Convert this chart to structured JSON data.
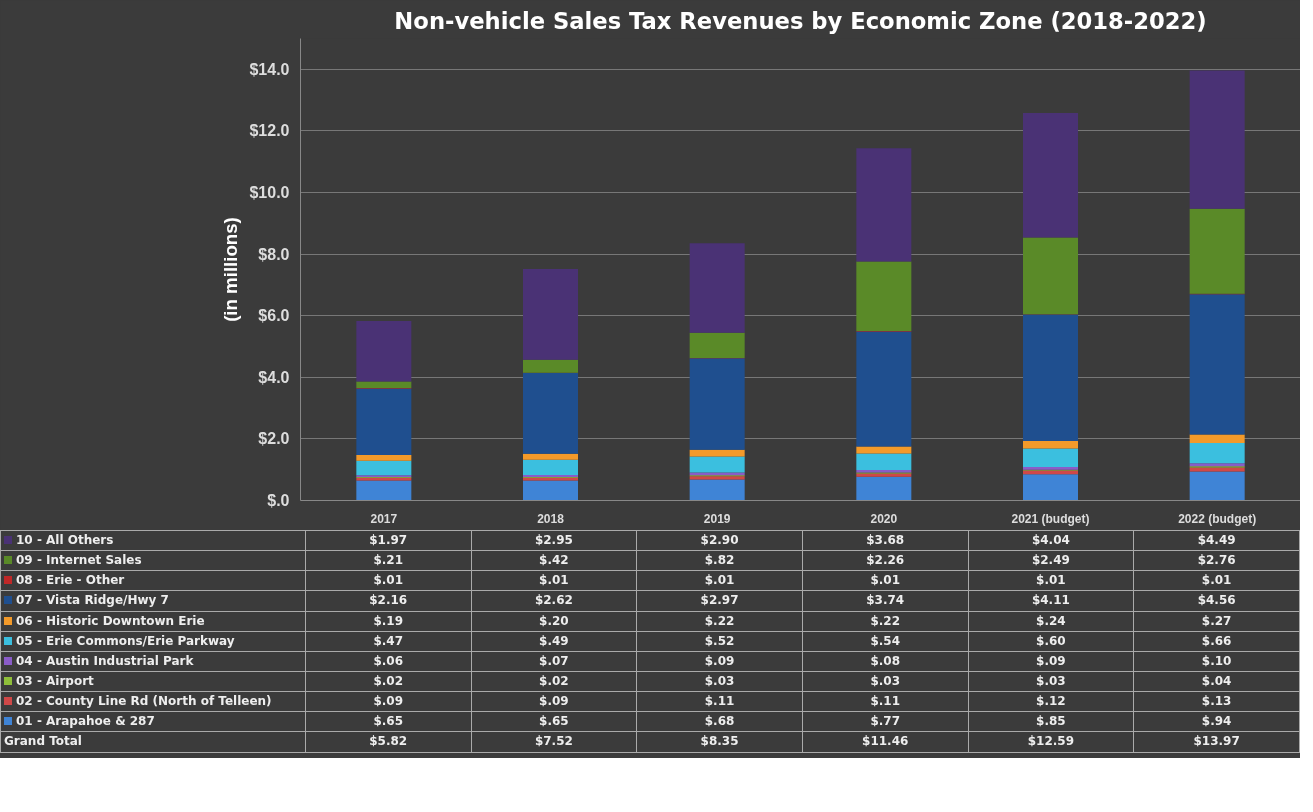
{
  "chart_data": {
    "type": "bar",
    "stacked": true,
    "title": "Non-vehicle Sales Tax Revenues by Economic Zone (2018-2022)",
    "ylabel": "(in millions)",
    "categories": [
      "2017",
      "2018",
      "2019",
      "2020",
      "2021 (budget)",
      "2022 (budget)"
    ],
    "ylim": [
      0,
      15
    ],
    "yticks": [
      {
        "value": 0,
        "label": "$.0"
      },
      {
        "value": 2,
        "label": "$2.0"
      },
      {
        "value": 4,
        "label": "$4.0"
      },
      {
        "value": 6,
        "label": "$6.0"
      },
      {
        "value": 8,
        "label": "$8.0"
      },
      {
        "value": 10,
        "label": "$10.0"
      },
      {
        "value": 12,
        "label": "$12.0"
      },
      {
        "value": 14,
        "label": "$14.0"
      }
    ],
    "grid": "y",
    "legend": "bottom left",
    "series": [
      {
        "name": "01 - Arapahoe & 287",
        "color": "#3f84d6",
        "values": [
          0.65,
          0.65,
          0.68,
          0.77,
          0.85,
          0.94
        ],
        "value_labels": [
          "$.65",
          "$.65",
          "$.68",
          "$.77",
          "$.85",
          "$.94"
        ]
      },
      {
        "name": "02 - County Line Rd (North of Telleen)",
        "color": "#d04848",
        "values": [
          0.09,
          0.09,
          0.11,
          0.11,
          0.12,
          0.13
        ],
        "value_labels": [
          "$.09",
          "$.09",
          "$.11",
          "$.11",
          "$.12",
          "$.13"
        ]
      },
      {
        "name": "03 - Airport",
        "color": "#8fbf3a",
        "values": [
          0.02,
          0.02,
          0.03,
          0.03,
          0.03,
          0.04
        ],
        "value_labels": [
          "$.02",
          "$.02",
          "$.03",
          "$.03",
          "$.03",
          "$.04"
        ]
      },
      {
        "name": "04 - Austin Industrial Park",
        "color": "#8a5cc8",
        "values": [
          0.06,
          0.07,
          0.09,
          0.08,
          0.09,
          0.1
        ],
        "value_labels": [
          "$.06",
          "$.07",
          "$.09",
          "$.08",
          "$.09",
          "$.10"
        ]
      },
      {
        "name": "05 - Erie Commons/Erie Parkway",
        "color": "#3bbfdf",
        "values": [
          0.47,
          0.49,
          0.52,
          0.54,
          0.6,
          0.66
        ],
        "value_labels": [
          "$.47",
          "$.49",
          "$.52",
          "$.54",
          "$.60",
          "$.66"
        ]
      },
      {
        "name": "06 - Historic Downtown Erie",
        "color": "#f39a2a",
        "values": [
          0.19,
          0.2,
          0.22,
          0.22,
          0.24,
          0.27
        ],
        "value_labels": [
          "$.19",
          "$.20",
          "$.22",
          "$.22",
          "$.24",
          "$.27"
        ]
      },
      {
        "name": "07 - Vista Ridge/Hwy 7",
        "color": "#1f4f8f",
        "values": [
          2.16,
          2.62,
          2.97,
          3.74,
          4.11,
          4.56
        ],
        "value_labels": [
          "$2.16",
          "$2.62",
          "$2.97",
          "$3.74",
          "$4.11",
          "$4.56"
        ]
      },
      {
        "name": "08 - Erie - Other",
        "color": "#c02828",
        "values": [
          0.01,
          0.01,
          0.01,
          0.01,
          0.01,
          0.01
        ],
        "value_labels": [
          "$.01",
          "$.01",
          "$.01",
          "$.01",
          "$.01",
          "$.01"
        ]
      },
      {
        "name": "09 - Internet Sales",
        "color": "#5a8a28",
        "values": [
          0.21,
          0.42,
          0.82,
          2.26,
          2.49,
          2.76
        ],
        "value_labels": [
          "$.21",
          "$.42",
          "$.82",
          "$2.26",
          "$2.49",
          "$2.76"
        ]
      },
      {
        "name": "10 - All Others",
        "color": "#4a3275",
        "values": [
          1.97,
          2.95,
          2.9,
          3.68,
          4.04,
          4.49
        ],
        "value_labels": [
          "$1.97",
          "$2.95",
          "$2.90",
          "$3.68",
          "$4.04",
          "$4.49"
        ]
      }
    ],
    "annotations": [
      "Grand Total",
      "$5.82",
      "$7.52",
      "$8.35",
      "$11.46",
      "$12.59",
      "$13.97"
    ]
  }
}
